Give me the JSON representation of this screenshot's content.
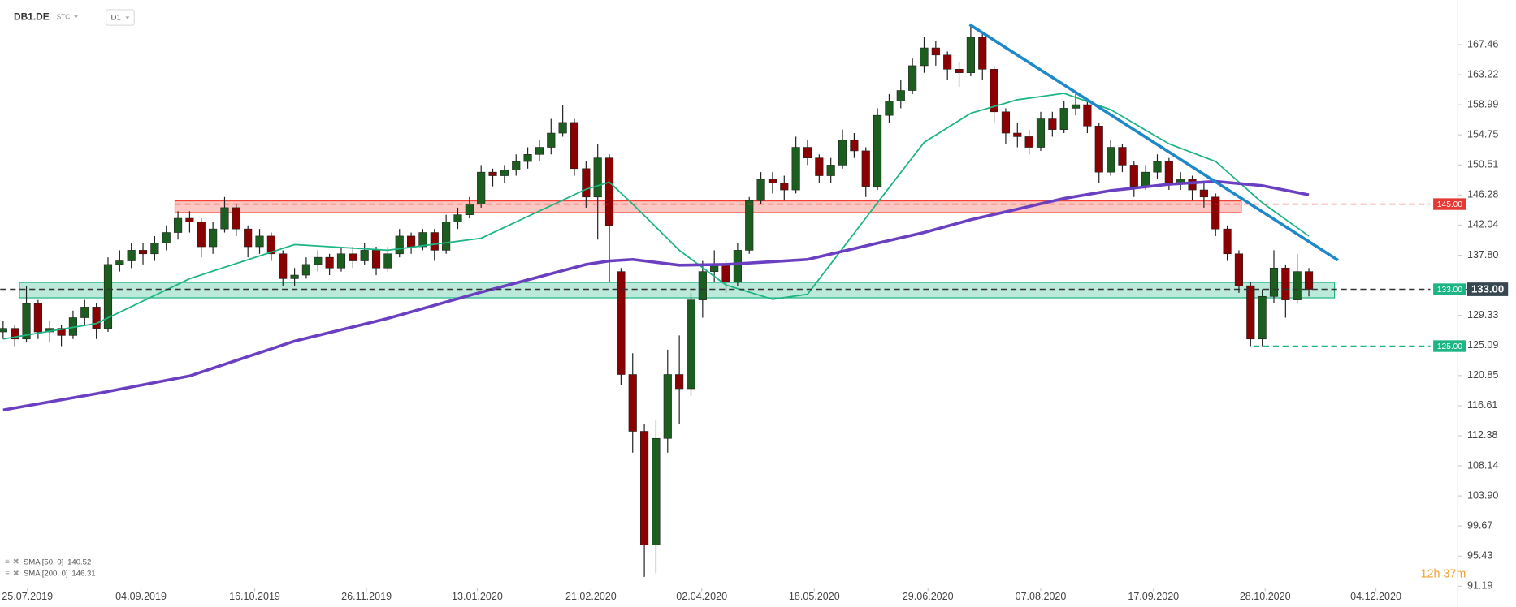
{
  "header": {
    "symbol": "DB1.DE",
    "market": "STC",
    "timeframe": "D1"
  },
  "chart_data": {
    "type": "candlestick",
    "up_color": "#1b5e20",
    "down_color": "#8b0000",
    "xlim": [
      -0.25,
      124.75
    ],
    "ylim": [
      90.92,
      173.75
    ],
    "xticks": [
      {
        "value": 2.08,
        "label": "25.07.2019"
      },
      {
        "value": 11.83,
        "label": "04.09.2019"
      },
      {
        "value": 21.58,
        "label": "16.10.2019"
      },
      {
        "value": 31.17,
        "label": "26.11.2019"
      },
      {
        "value": 40.67,
        "label": "13.01.2020"
      },
      {
        "value": 50.42,
        "label": "21.02.2020"
      },
      {
        "value": 59.92,
        "label": "02.04.2020"
      },
      {
        "value": 69.58,
        "label": "18.05.2020"
      },
      {
        "value": 79.33,
        "label": "29.06.2020"
      },
      {
        "value": 89,
        "label": "07.08.2020"
      },
      {
        "value": 98.67,
        "label": "17.09.2020"
      },
      {
        "value": 108.25,
        "label": "28.10.2020"
      },
      {
        "value": 117.75,
        "label": "04.12.2020"
      }
    ],
    "yticks": [
      167.46,
      163.22,
      158.99,
      154.75,
      150.51,
      146.28,
      142.04,
      {
        "value": 137.8,
        "label": "137.80"
      },
      129.33,
      125.09,
      120.85,
      116.61,
      112.38,
      108.14,
      {
        "value": 103.9,
        "label": "103.90"
      },
      99.67,
      95.43,
      91.19
    ],
    "candles": [
      [
        127.0,
        128.5,
        126.0,
        127.5
      ],
      [
        127.5,
        128.0,
        125.0,
        126.0
      ],
      [
        126.0,
        133.5,
        125.5,
        131.0
      ],
      [
        131.0,
        131.5,
        126.0,
        127.0
      ],
      [
        127.0,
        128.5,
        125.5,
        127.5
      ],
      [
        127.5,
        128.0,
        125.0,
        126.5
      ],
      [
        126.5,
        130.0,
        126.0,
        129.0
      ],
      [
        129.0,
        131.5,
        128.0,
        130.5
      ],
      [
        130.5,
        131.0,
        126.0,
        127.5
      ],
      [
        127.5,
        137.5,
        127.0,
        136.5
      ],
      [
        136.5,
        138.5,
        135.5,
        137.0
      ],
      [
        137.0,
        139.5,
        136.0,
        138.5
      ],
      [
        138.5,
        139.5,
        136.5,
        138.0
      ],
      [
        138.0,
        140.5,
        137.0,
        139.5
      ],
      [
        139.5,
        142.0,
        138.5,
        141.0
      ],
      [
        141.0,
        144.0,
        140.0,
        143.0
      ],
      [
        143.0,
        144.0,
        141.0,
        142.5
      ],
      [
        142.5,
        143.0,
        137.5,
        139.0
      ],
      [
        139.0,
        142.5,
        138.0,
        141.5
      ],
      [
        141.5,
        146.0,
        141.0,
        144.5
      ],
      [
        144.5,
        145.0,
        140.5,
        141.5
      ],
      [
        141.5,
        142.0,
        137.5,
        139.0
      ],
      [
        139.0,
        141.5,
        138.0,
        140.5
      ],
      [
        140.5,
        141.0,
        137.0,
        138.0
      ],
      [
        138.0,
        138.5,
        133.5,
        134.5
      ],
      [
        134.5,
        136.0,
        133.5,
        135.0
      ],
      [
        135.0,
        137.5,
        134.5,
        136.5
      ],
      [
        136.5,
        138.5,
        135.5,
        137.5
      ],
      [
        137.5,
        138.0,
        135.0,
        136.0
      ],
      [
        136.0,
        139.0,
        135.5,
        138.0
      ],
      [
        138.0,
        139.0,
        136.0,
        137.0
      ],
      [
        137.0,
        139.5,
        136.5,
        138.5
      ],
      [
        138.5,
        139.0,
        135.0,
        136.0
      ],
      [
        136.0,
        139.0,
        135.5,
        138.0
      ],
      [
        138.0,
        141.5,
        137.5,
        140.5
      ],
      [
        140.5,
        141.0,
        138.0,
        139.0
      ],
      [
        139.0,
        141.5,
        138.5,
        141.0
      ],
      [
        141.0,
        141.5,
        137.0,
        138.5
      ],
      [
        138.5,
        143.5,
        138.0,
        142.5
      ],
      [
        142.5,
        144.5,
        141.5,
        143.5
      ],
      [
        143.5,
        146.0,
        143.0,
        145.0
      ],
      [
        145.0,
        150.5,
        144.5,
        149.5
      ],
      [
        149.5,
        150.0,
        147.5,
        149.0
      ],
      [
        149.0,
        150.5,
        148.0,
        149.8
      ],
      [
        149.8,
        152.0,
        149.0,
        151.0
      ],
      [
        151.0,
        153.0,
        150.0,
        152.0
      ],
      [
        152.0,
        154.0,
        151.0,
        153.0
      ],
      [
        153.0,
        157.0,
        152.0,
        155.0
      ],
      [
        155.0,
        159.0,
        154.5,
        156.5
      ],
      [
        156.5,
        157.0,
        149.0,
        150.0
      ],
      [
        150.0,
        151.0,
        144.5,
        146.0
      ],
      [
        146.0,
        153.5,
        140.0,
        151.5
      ],
      [
        151.5,
        152.0,
        134.0,
        142.0
      ],
      [
        135.5,
        136.0,
        119.5,
        121.0
      ],
      [
        121.0,
        124.0,
        110.0,
        113.0
      ],
      [
        113.0,
        114.0,
        92.5,
        97.0
      ],
      [
        97.0,
        114.5,
        93.0,
        112.0
      ],
      [
        112.0,
        124.5,
        110.0,
        121.0
      ],
      [
        121.0,
        126.5,
        114.0,
        119.0
      ],
      [
        119.0,
        132.5,
        118.0,
        131.5
      ],
      [
        131.5,
        137.0,
        129.0,
        135.5
      ],
      [
        135.5,
        138.5,
        134.0,
        136.5
      ],
      [
        136.5,
        137.0,
        132.5,
        134.0
      ],
      [
        134.0,
        139.5,
        133.5,
        138.5
      ],
      [
        138.5,
        146.0,
        138.0,
        145.5
      ],
      [
        145.5,
        149.5,
        145.0,
        148.5
      ],
      [
        148.5,
        149.5,
        146.5,
        148.0
      ],
      [
        148.0,
        149.0,
        145.5,
        147.0
      ],
      [
        147.0,
        154.5,
        146.5,
        153.0
      ],
      [
        153.0,
        154.0,
        150.5,
        151.5
      ],
      [
        151.5,
        152.0,
        148.0,
        149.0
      ],
      [
        149.0,
        151.5,
        148.0,
        150.5
      ],
      [
        150.5,
        155.5,
        150.0,
        154.0
      ],
      [
        154.0,
        155.0,
        151.5,
        152.5
      ],
      [
        152.5,
        153.0,
        146.0,
        147.5
      ],
      [
        147.5,
        158.5,
        147.0,
        157.5
      ],
      [
        157.5,
        160.5,
        156.5,
        159.5
      ],
      [
        159.5,
        162.5,
        158.5,
        161.0
      ],
      [
        161.0,
        165.5,
        160.5,
        164.5
      ],
      [
        164.5,
        168.5,
        163.5,
        167.0
      ],
      [
        167.0,
        168.0,
        164.5,
        166.0
      ],
      [
        166.0,
        166.5,
        162.5,
        164.0
      ],
      [
        164.0,
        165.0,
        161.5,
        163.5
      ],
      [
        163.5,
        170.0,
        163.0,
        168.5
      ],
      [
        168.5,
        169.0,
        162.5,
        164.0
      ],
      [
        164.0,
        164.5,
        156.5,
        158.0
      ],
      [
        158.0,
        158.5,
        153.5,
        155.0
      ],
      [
        155.0,
        156.5,
        153.0,
        154.5
      ],
      [
        154.5,
        155.5,
        152.0,
        153.0
      ],
      [
        153.0,
        158.0,
        152.5,
        157.0
      ],
      [
        157.0,
        158.0,
        154.5,
        155.5
      ],
      [
        155.5,
        159.5,
        155.0,
        158.5
      ],
      [
        158.5,
        160.5,
        157.5,
        159.0
      ],
      [
        159.0,
        159.5,
        155.0,
        156.0
      ],
      [
        156.0,
        156.5,
        148.0,
        149.5
      ],
      [
        149.5,
        154.0,
        149.0,
        153.0
      ],
      [
        153.0,
        153.5,
        149.5,
        150.5
      ],
      [
        150.5,
        151.0,
        146.0,
        147.5
      ],
      [
        147.5,
        150.5,
        147.0,
        149.5
      ],
      [
        149.5,
        152.0,
        148.5,
        151.0
      ],
      [
        151.0,
        151.5,
        147.0,
        148.0
      ],
      [
        148.0,
        149.5,
        147.0,
        148.5
      ],
      [
        148.5,
        149.0,
        145.5,
        147.0
      ],
      [
        147.0,
        148.0,
        144.5,
        146.0
      ],
      [
        146.0,
        146.5,
        140.5,
        141.5
      ],
      [
        141.5,
        142.0,
        137.0,
        138.0
      ],
      [
        138.0,
        138.5,
        132.5,
        133.5
      ],
      [
        133.5,
        134.0,
        125.0,
        126.0
      ],
      [
        126.0,
        133.0,
        125.0,
        132.0
      ],
      [
        132.0,
        138.5,
        131.0,
        136.0
      ],
      [
        136.0,
        136.5,
        129.0,
        131.5
      ],
      [
        131.5,
        138.0,
        131.0,
        135.5
      ],
      [
        135.5,
        136.0,
        132.0,
        133.0
      ]
    ],
    "series": [
      {
        "name": "SMA [50, 0]",
        "legend_value": 140.52,
        "color": "#1db584",
        "width": 1.5,
        "x": [
          0,
          8,
          16,
          25,
          33,
          41,
          50,
          52,
          54,
          58,
          62,
          66,
          69,
          75,
          79,
          83,
          87,
          91,
          95,
          100,
          104,
          108,
          112
        ],
        "values": [
          126.0,
          128.2,
          134.5,
          139.3,
          138.5,
          140.2,
          147.1,
          148.1,
          145.0,
          138.5,
          133.6,
          131.6,
          132.3,
          145.2,
          153.7,
          157.8,
          159.7,
          160.6,
          158.3,
          153.5,
          151.0,
          145.2,
          140.5
        ]
      },
      {
        "name": "SMA [200, 0]",
        "legend_value": 146.31,
        "color": "#6a3fc1",
        "width": 3,
        "x": [
          0,
          8,
          16,
          25,
          33,
          41,
          50,
          52,
          54,
          58,
          62,
          66,
          69,
          75,
          79,
          83,
          87,
          91,
          95,
          100,
          104,
          108,
          112
        ],
        "values": [
          116.0,
          118.3,
          120.8,
          125.7,
          128.9,
          132.6,
          136.5,
          137.0,
          137.2,
          136.4,
          136.5,
          136.9,
          137.2,
          139.5,
          141.0,
          142.8,
          144.3,
          145.8,
          146.9,
          147.8,
          148.2,
          147.6,
          146.3
        ]
      }
    ],
    "zones": [
      {
        "low": 143.8,
        "high": 145.45,
        "x": [
          14.75,
          106.2
        ],
        "color": "#f44336"
      },
      {
        "low": 131.8,
        "high": 133.97,
        "x": [
          1.4,
          114.2
        ],
        "color": "#1db584"
      }
    ],
    "trendline": {
      "x": [
        82.9,
        114.5
      ],
      "values": [
        170.3,
        137.1
      ],
      "color": "#1e88c8"
    },
    "levels": [
      {
        "value": 145,
        "label": "145.00",
        "color": "#e53935",
        "line_color": "#e53935",
        "x_from": 14.75
      },
      {
        "value": 133,
        "label": "133.00",
        "color": "#1db584",
        "line_color": "#333333",
        "x_from": -0.25
      },
      {
        "value": 125,
        "label": "125.00",
        "color": "#1db584",
        "line_color": "#1db584",
        "x_from": 107.25
      }
    ],
    "last_price": {
      "value": 133,
      "label": "133.00",
      "color": "#37474f"
    },
    "countdown": "12h 37m"
  }
}
